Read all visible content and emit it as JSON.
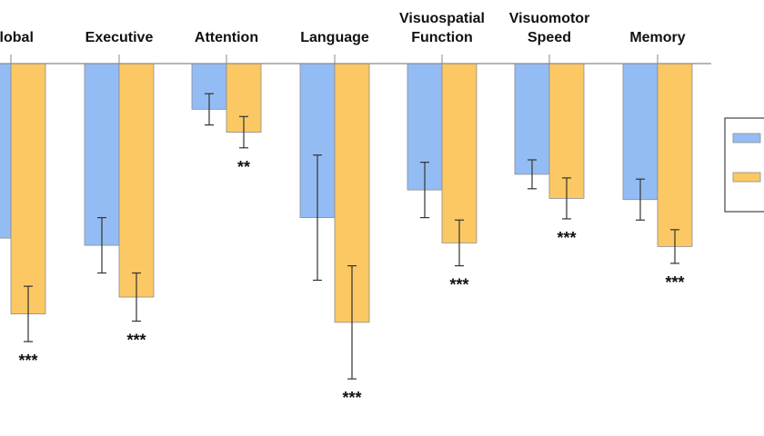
{
  "chart_data": {
    "type": "bar",
    "categories": [
      [
        "Global"
      ],
      [
        "Executive"
      ],
      [
        "Attention"
      ],
      [
        "Language"
      ],
      [
        "Visuospatial",
        "Function"
      ],
      [
        "Visuomotor",
        "Speed"
      ],
      [
        "Memory"
      ]
    ],
    "series": [
      {
        "color": "#94bcf4",
        "values": [
          -1.45,
          -1.51,
          -0.38,
          -1.28,
          -1.05,
          -0.92,
          -1.13
        ],
        "error": [
          null,
          0.23,
          0.13,
          0.52,
          0.23,
          0.12,
          0.17
        ]
      },
      {
        "color": "#fbc864",
        "values": [
          -2.08,
          -1.94,
          -0.57,
          -2.15,
          -1.49,
          -1.12,
          -1.52
        ],
        "error": [
          0.23,
          0.2,
          0.13,
          0.47,
          0.19,
          0.17,
          0.14
        ]
      }
    ],
    "significance": [
      "***",
      "***",
      "**",
      "***",
      "***",
      "***",
      "***"
    ],
    "ylim": [
      -2.7,
      0.2
    ],
    "grid": false,
    "legend_position": "right",
    "legend_entries": 2
  }
}
